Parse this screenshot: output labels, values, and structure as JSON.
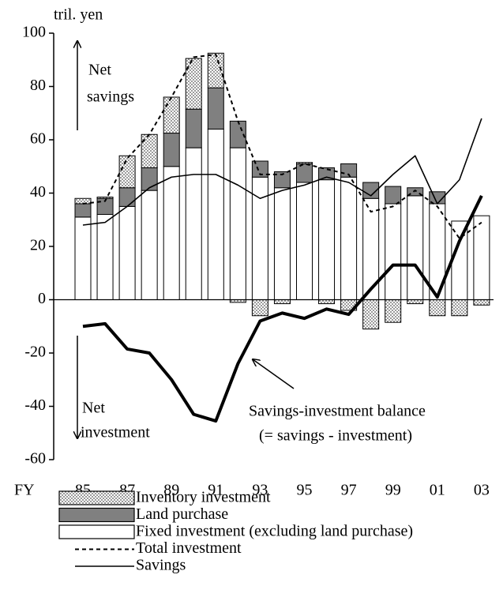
{
  "chart_data": {
    "type": "bar",
    "unit_label": "tril. yen",
    "x_label": "FY",
    "categories": [
      "85",
      null,
      "87",
      null,
      "89",
      null,
      "91",
      null,
      "93",
      null,
      "95",
      null,
      "97",
      null,
      "99",
      null,
      "01",
      null,
      "03"
    ],
    "ylim": [
      -60,
      100
    ],
    "yticks": [
      100,
      80,
      60,
      40,
      20,
      0,
      -20,
      -40,
      -60
    ],
    "series": [
      {
        "name": "Inventory investment",
        "type": "bar",
        "color": "#ffffff",
        "pattern": "dots",
        "values": [
          2,
          0.5,
          12,
          12.5,
          13.5,
          19,
          13,
          -1,
          -6,
          -1.5,
          0.5,
          -1.5,
          -4,
          -11,
          -8.5,
          -1.5,
          -6,
          -6,
          -2
        ]
      },
      {
        "name": "Land purchase",
        "type": "bar",
        "color": "#808080",
        "values": [
          5,
          6,
          7,
          8.5,
          12.5,
          14.5,
          15.5,
          10,
          6,
          6,
          7,
          4.5,
          5,
          6,
          6.5,
          3,
          4.5,
          0,
          0
        ]
      },
      {
        "name": "Fixed investment (excluding land purchase)",
        "type": "bar",
        "color": "#ffffff",
        "values": [
          31,
          32,
          35,
          41,
          50,
          57,
          64,
          57,
          46,
          42,
          44,
          45,
          46,
          38,
          36,
          39,
          36,
          29.5,
          31.5
        ]
      },
      {
        "name": "Total investment",
        "type": "line",
        "color": "#000000",
        "dashed": true,
        "width": 2,
        "values": [
          36,
          37,
          53,
          62,
          76,
          91,
          92,
          67,
          47,
          47,
          51,
          49,
          47,
          33,
          35,
          41,
          35,
          23,
          29
        ]
      },
      {
        "name": "Savings",
        "type": "line",
        "color": "#000000",
        "width": 1.6,
        "values": [
          28,
          29,
          35,
          42,
          46,
          47,
          47,
          43,
          38,
          41,
          43,
          46,
          44,
          39,
          47,
          54,
          36,
          45,
          68
        ]
      },
      {
        "type": "line",
        "color": "#000000",
        "width": 4,
        "legend": false,
        "values": [
          -10,
          -9,
          -18.5,
          -20,
          -30,
          -43,
          -45.5,
          -24,
          -8,
          -5,
          -7,
          -3.5,
          -5.5,
          4,
          13,
          13,
          1,
          22,
          39
        ]
      }
    ],
    "stack_order": [
      2,
      1,
      0
    ],
    "annotations": [
      "Net",
      "savings",
      "Net",
      "investment",
      "Savings-investment balance",
      "(= savings - investment)"
    ]
  }
}
